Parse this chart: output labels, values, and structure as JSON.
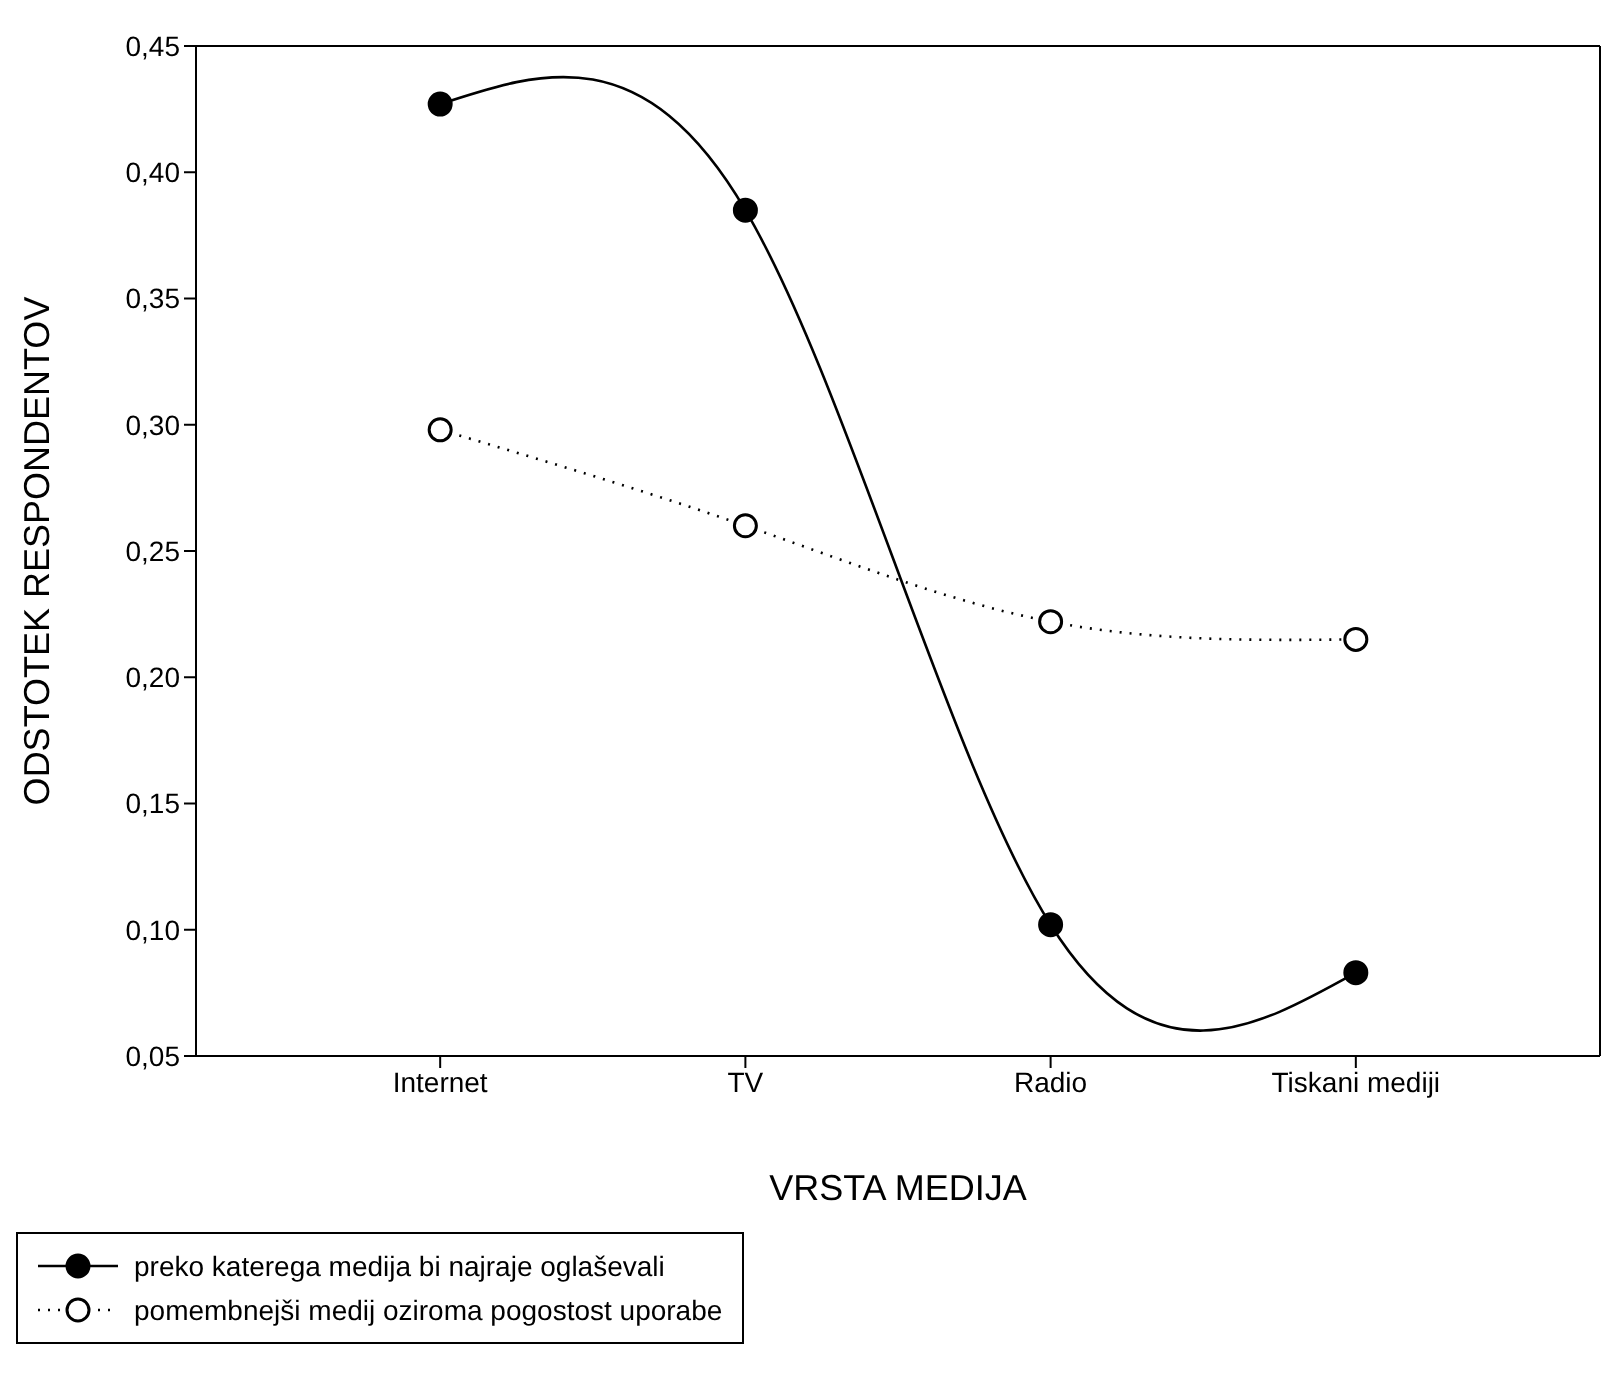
{
  "chart_data": {
    "type": "line",
    "xlabel": "VRSTA MEDIJA",
    "ylabel": "ODSTOTEK RESPONDENTOV",
    "categories": [
      "Internet",
      "TV",
      "Radio",
      "Tiskani mediji"
    ],
    "series": [
      {
        "name": "preko katerega medija bi najraje oglaševali",
        "color": "#000000",
        "values": [
          0.427,
          0.385,
          0.102,
          0.083
        ],
        "line_style": "solid",
        "marker": "circle"
      },
      {
        "name": "pomembnejši medij oziroma pogostost uporabe",
        "color": "#000000",
        "values": [
          0.298,
          0.26,
          0.222,
          0.215
        ],
        "line_style": "dotted",
        "marker": "circle"
      }
    ],
    "ylim": [
      0.05,
      0.45
    ],
    "yticks": [
      {
        "value": 0.05,
        "label": "0,05"
      },
      {
        "value": 0.1,
        "label": "0,10"
      },
      {
        "value": 0.15,
        "label": "0,15"
      },
      {
        "value": 0.2,
        "label": "0,20"
      },
      {
        "value": 0.25,
        "label": "0,25"
      },
      {
        "value": 0.3,
        "label": "0,30"
      },
      {
        "value": 0.35,
        "label": "0,35"
      },
      {
        "value": 0.4,
        "label": "0,40"
      },
      {
        "value": 0.45,
        "label": "0,45"
      }
    ],
    "grid": false,
    "legend": "bottom left"
  }
}
